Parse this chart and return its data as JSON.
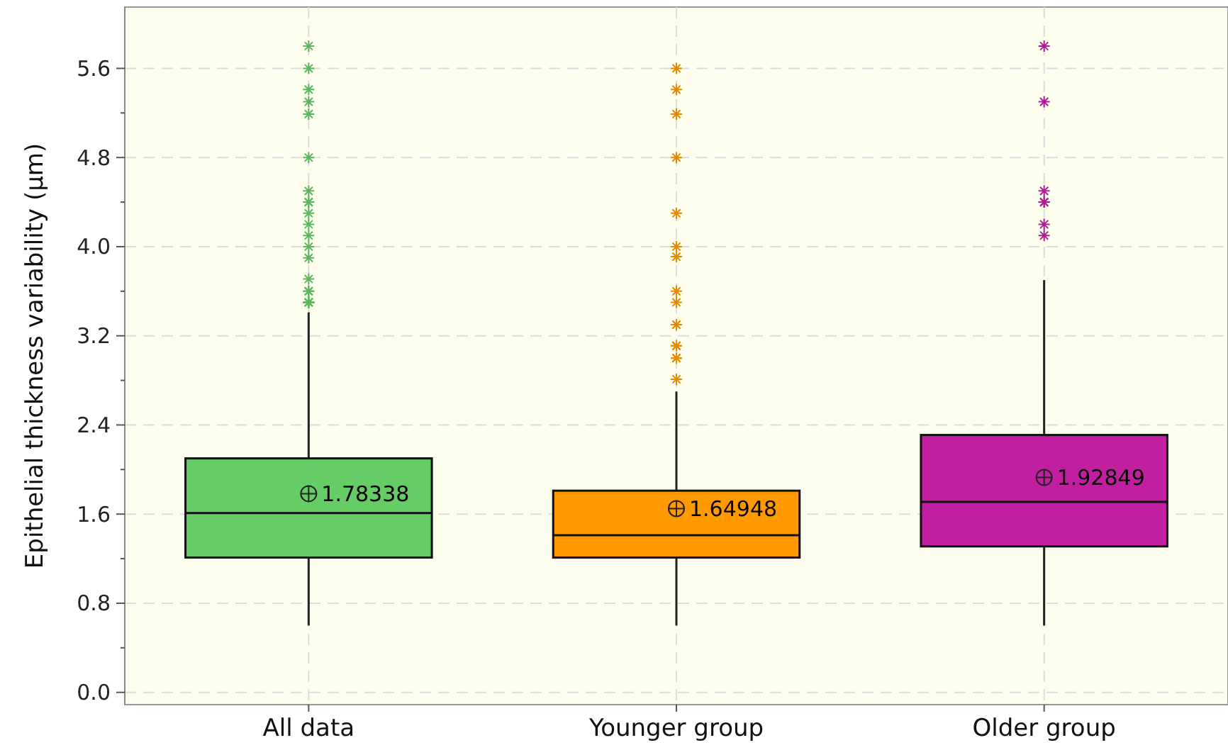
{
  "chart_data": {
    "type": "box",
    "ylabel": "Epithelial thickness variability (μm)",
    "categories": [
      "All data",
      "Younger group",
      "Older group"
    ],
    "colors": [
      "#66cc66",
      "#ff9900",
      "#c020a0"
    ],
    "boxes": [
      {
        "low": 0.6,
        "q1": 1.21,
        "median": 1.61,
        "q3": 2.1,
        "high": 3.41,
        "mean": 1.78338,
        "outliers": [
          5.8,
          5.6,
          5.41,
          5.3,
          5.19,
          4.8,
          4.5,
          4.4,
          4.4,
          4.3,
          4.2,
          4.1,
          4.0,
          3.9,
          3.71,
          3.6,
          3.6,
          3.5,
          3.5,
          3.5,
          3.5
        ]
      },
      {
        "low": 0.6,
        "q1": 1.21,
        "median": 1.41,
        "q3": 1.81,
        "high": 2.7,
        "mean": 1.64948,
        "outliers": [
          5.6,
          5.41,
          5.19,
          4.8,
          4.3,
          4.0,
          3.91,
          3.6,
          3.5,
          3.3,
          3.3,
          3.11,
          3.11,
          3.0,
          3.0,
          2.81
        ]
      },
      {
        "low": 0.6,
        "q1": 1.31,
        "median": 1.71,
        "q3": 2.31,
        "high": 3.7,
        "mean": 1.92849,
        "outliers": [
          5.8,
          5.3,
          4.5,
          4.4,
          4.4,
          4.2,
          4.1
        ]
      }
    ],
    "annotations": [
      "1.78338",
      "1.64948",
      "1.92849"
    ],
    "ylim": [
      -0.11,
      6.15
    ],
    "yticks": [
      {
        "value": 0,
        "label": "0.0"
      },
      {
        "value": 0.4,
        "label": null
      },
      {
        "value": 0.8,
        "label": "0.8"
      },
      {
        "value": 1.2,
        "label": null
      },
      {
        "value": 1.6,
        "label": "1.6"
      },
      {
        "value": 2.0,
        "label": null
      },
      {
        "value": 2.4,
        "label": "2.4"
      },
      {
        "value": 2.8,
        "label": null
      },
      {
        "value": 3.2,
        "label": "3.2"
      },
      {
        "value": 3.6,
        "label": null
      },
      {
        "value": 4.0,
        "label": "4.0"
      },
      {
        "value": 4.4,
        "label": null
      },
      {
        "value": 4.8,
        "label": "4.8"
      },
      {
        "value": 5.2,
        "label": null
      },
      {
        "value": 5.6,
        "label": "5.6"
      }
    ],
    "grid": true,
    "marker": "star"
  }
}
